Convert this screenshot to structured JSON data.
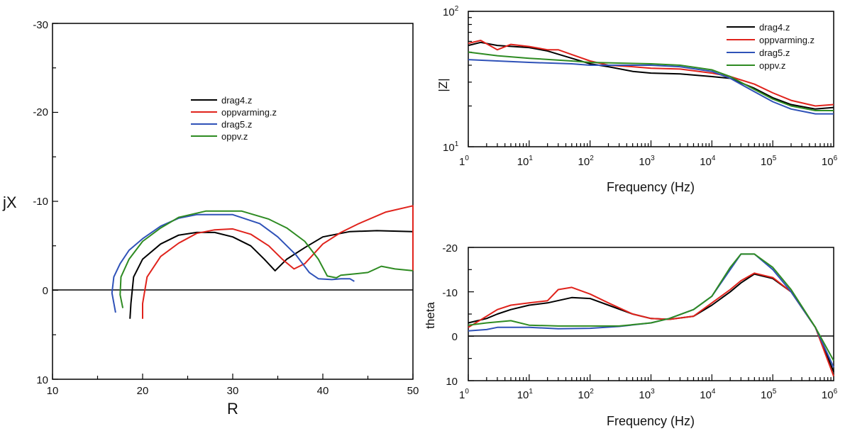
{
  "colors": {
    "drag4": "#000000",
    "oppvarming": "#e0231c",
    "drag5": "#2f52b8",
    "oppv": "#2e8b22"
  },
  "chart_data": [
    {
      "id": "nyquist",
      "type": "line",
      "xlabel": "R",
      "ylabel": "jX",
      "xlim": [
        10,
        50
      ],
      "ylim": [
        -30,
        10
      ],
      "y_inverted": true,
      "xticks": [
        "10",
        "20",
        "30",
        "40",
        "50"
      ],
      "yticks": [
        "-30",
        "-20",
        "-10",
        "0",
        "10"
      ],
      "legend_placement": "center",
      "series": [
        {
          "name": "drag4.z",
          "color_key": "drag4",
          "points": [
            [
              18.6,
              3.2
            ],
            [
              18.7,
              1.5
            ],
            [
              19.0,
              -1.5
            ],
            [
              20.0,
              -3.5
            ],
            [
              22.0,
              -5.2
            ],
            [
              24.0,
              -6.2
            ],
            [
              26.0,
              -6.5
            ],
            [
              28.0,
              -6.5
            ],
            [
              30.0,
              -6.0
            ],
            [
              32.0,
              -5.0
            ],
            [
              33.5,
              -3.5
            ],
            [
              34.7,
              -2.2
            ],
            [
              36.0,
              -3.5
            ],
            [
              38.0,
              -4.8
            ],
            [
              40.0,
              -6.0
            ],
            [
              43.0,
              -6.6
            ],
            [
              46.0,
              -6.7
            ],
            [
              50.0,
              -6.6
            ]
          ]
        },
        {
          "name": "oppvarming.z",
          "color_key": "oppvarming",
          "points": [
            [
              20.0,
              3.2
            ],
            [
              20.0,
              1.5
            ],
            [
              20.5,
              -1.5
            ],
            [
              22.0,
              -3.8
            ],
            [
              24.0,
              -5.3
            ],
            [
              26.0,
              -6.4
            ],
            [
              28.0,
              -6.8
            ],
            [
              30.0,
              -6.9
            ],
            [
              32.0,
              -6.3
            ],
            [
              34.0,
              -5.0
            ],
            [
              35.5,
              -3.5
            ],
            [
              36.8,
              -2.4
            ],
            [
              38.0,
              -3.0
            ],
            [
              40.0,
              -5.2
            ],
            [
              42.0,
              -6.5
            ],
            [
              44.0,
              -7.5
            ],
            [
              47.0,
              -8.8
            ],
            [
              50.0,
              -9.5
            ],
            [
              50.0,
              -2.2
            ]
          ]
        },
        {
          "name": "drag5.z",
          "color_key": "drag5",
          "points": [
            [
              17.0,
              2.5
            ],
            [
              16.6,
              0.3
            ],
            [
              16.8,
              -1.5
            ],
            [
              17.5,
              -3.0
            ],
            [
              18.5,
              -4.5
            ],
            [
              20.0,
              -5.8
            ],
            [
              22.0,
              -7.2
            ],
            [
              24.0,
              -8.1
            ],
            [
              26.0,
              -8.5
            ],
            [
              30.0,
              -8.5
            ],
            [
              33.0,
              -7.5
            ],
            [
              35.0,
              -6.0
            ],
            [
              37.0,
              -4.0
            ],
            [
              38.5,
              -2.0
            ],
            [
              39.5,
              -1.3
            ],
            [
              41.0,
              -1.2
            ],
            [
              42.0,
              -1.3
            ],
            [
              43.0,
              -1.3
            ],
            [
              43.5,
              -1.0
            ]
          ]
        },
        {
          "name": "oppv.z",
          "color_key": "oppv",
          "points": [
            [
              17.8,
              2.0
            ],
            [
              17.5,
              0.5
            ],
            [
              17.6,
              -1.5
            ],
            [
              18.5,
              -3.5
            ],
            [
              20.0,
              -5.5
            ],
            [
              22.0,
              -7.0
            ],
            [
              24.0,
              -8.2
            ],
            [
              27.0,
              -8.9
            ],
            [
              31.0,
              -8.9
            ],
            [
              34.0,
              -8.0
            ],
            [
              36.0,
              -7.0
            ],
            [
              38.0,
              -5.5
            ],
            [
              39.5,
              -3.5
            ],
            [
              40.5,
              -1.6
            ],
            [
              41.5,
              -1.4
            ],
            [
              42.0,
              -1.7
            ],
            [
              44.0,
              -1.9
            ],
            [
              45.0,
              -2.0
            ],
            [
              46.5,
              -2.7
            ],
            [
              48.0,
              -2.4
            ],
            [
              50.0,
              -2.2
            ]
          ]
        }
      ]
    },
    {
      "id": "bode-magnitude",
      "type": "line",
      "xlabel": "Frequency (Hz)",
      "ylabel": "|Z|",
      "xscale": "log",
      "yscale": "log",
      "xlim": [
        1,
        1000000
      ],
      "ylim": [
        10,
        100
      ],
      "xticks": [
        "1",
        "10",
        "100",
        "1000",
        "10000",
        "100000",
        "1000000"
      ],
      "yticks": [
        "10",
        "100"
      ],
      "legend_placement": "top-right",
      "series": [
        {
          "name": "drag4.z",
          "color_key": "drag4",
          "points": [
            [
              1,
              56
            ],
            [
              1.6,
              59
            ],
            [
              3,
              56
            ],
            [
              10,
              54
            ],
            [
              20,
              51
            ],
            [
              50,
              45
            ],
            [
              100,
              41
            ],
            [
              200,
              39
            ],
            [
              500,
              36
            ],
            [
              1000,
              35
            ],
            [
              3000,
              34.5
            ],
            [
              10000,
              33
            ],
            [
              20000,
              32
            ],
            [
              50000,
              27
            ],
            [
              100000,
              23
            ],
            [
              200000,
              20.5
            ],
            [
              500000,
              19
            ],
            [
              1000000,
              19.5
            ]
          ]
        },
        {
          "name": "oppvarming.z",
          "color_key": "oppvarming",
          "points": [
            [
              1,
              58
            ],
            [
              1.6,
              61
            ],
            [
              3,
              52
            ],
            [
              5,
              57
            ],
            [
              10,
              55
            ],
            [
              20,
              52
            ],
            [
              30,
              52
            ],
            [
              50,
              48
            ],
            [
              100,
              43
            ],
            [
              200,
              40
            ],
            [
              500,
              39
            ],
            [
              1000,
              38
            ],
            [
              3000,
              37.5
            ],
            [
              10000,
              35
            ],
            [
              20000,
              33
            ],
            [
              50000,
              29
            ],
            [
              100000,
              25
            ],
            [
              200000,
              22
            ],
            [
              500000,
              20
            ],
            [
              1000000,
              20.5
            ]
          ]
        },
        {
          "name": "drag5.z",
          "color_key": "drag5",
          "points": [
            [
              1,
              44
            ],
            [
              3,
              43
            ],
            [
              10,
              42
            ],
            [
              50,
              41
            ],
            [
              100,
              40
            ],
            [
              300,
              40
            ],
            [
              1000,
              40
            ],
            [
              3000,
              39
            ],
            [
              10000,
              36
            ],
            [
              20000,
              32
            ],
            [
              50000,
              25.5
            ],
            [
              100000,
              21.5
            ],
            [
              200000,
              19
            ],
            [
              500000,
              17.5
            ],
            [
              1000000,
              17.5
            ]
          ]
        },
        {
          "name": "oppv.z",
          "color_key": "oppv",
          "points": [
            [
              1,
              50
            ],
            [
              3,
              47
            ],
            [
              10,
              45
            ],
            [
              50,
              43
            ],
            [
              100,
              42
            ],
            [
              300,
              41.5
            ],
            [
              1000,
              41
            ],
            [
              3000,
              40
            ],
            [
              10000,
              37
            ],
            [
              20000,
              33
            ],
            [
              50000,
              26.5
            ],
            [
              100000,
              22.5
            ],
            [
              200000,
              20
            ],
            [
              500000,
              18.5
            ],
            [
              1000000,
              18.5
            ]
          ]
        }
      ]
    },
    {
      "id": "bode-phase",
      "type": "line",
      "xlabel": "Frequency (Hz)",
      "ylabel": "theta",
      "xscale": "log",
      "xlim": [
        1,
        1000000
      ],
      "ylim": [
        -20,
        10
      ],
      "y_inverted": true,
      "xticks": [
        "1",
        "10",
        "100",
        "1000",
        "10000",
        "100000",
        "1000000"
      ],
      "yticks": [
        "-20",
        "-10",
        "0",
        "10"
      ],
      "series": [
        {
          "name": "drag4.z",
          "color_key": "drag4",
          "points": [
            [
              1,
              -3
            ],
            [
              2,
              -4
            ],
            [
              3,
              -5
            ],
            [
              5,
              -6
            ],
            [
              10,
              -7
            ],
            [
              20,
              -7.5
            ],
            [
              50,
              -8.7
            ],
            [
              100,
              -8.5
            ],
            [
              200,
              -7
            ],
            [
              500,
              -5
            ],
            [
              1000,
              -4
            ],
            [
              2000,
              -3.8
            ],
            [
              5000,
              -4.5
            ],
            [
              10000,
              -7
            ],
            [
              20000,
              -10
            ],
            [
              30000,
              -12
            ],
            [
              50000,
              -14
            ],
            [
              100000,
              -13
            ],
            [
              200000,
              -10
            ],
            [
              500000,
              -2
            ],
            [
              1000000,
              8
            ]
          ]
        },
        {
          "name": "oppvarming.z",
          "color_key": "oppvarming",
          "points": [
            [
              1,
              -2
            ],
            [
              2,
              -4.5
            ],
            [
              3,
              -6
            ],
            [
              5,
              -7
            ],
            [
              10,
              -7.5
            ],
            [
              20,
              -8
            ],
            [
              30,
              -10.5
            ],
            [
              50,
              -11
            ],
            [
              100,
              -9.5
            ],
            [
              200,
              -7.5
            ],
            [
              500,
              -5
            ],
            [
              1000,
              -4
            ],
            [
              2000,
              -3.8
            ],
            [
              5000,
              -4.5
            ],
            [
              10000,
              -7.5
            ],
            [
              20000,
              -10.5
            ],
            [
              30000,
              -12.5
            ],
            [
              50000,
              -14.2
            ],
            [
              100000,
              -13.2
            ],
            [
              200000,
              -10
            ],
            [
              500000,
              -2
            ],
            [
              1000000,
              9
            ]
          ]
        },
        {
          "name": "drag5.z",
          "color_key": "drag5",
          "points": [
            [
              1,
              -1.2
            ],
            [
              2,
              -1.5
            ],
            [
              3,
              -2
            ],
            [
              10,
              -2
            ],
            [
              30,
              -1.7
            ],
            [
              100,
              -1.8
            ],
            [
              300,
              -2.2
            ],
            [
              1000,
              -3
            ],
            [
              2000,
              -4
            ],
            [
              5000,
              -6
            ],
            [
              10000,
              -9
            ],
            [
              20000,
              -15
            ],
            [
              30000,
              -18.5
            ],
            [
              50000,
              -18.5
            ],
            [
              100000,
              -15
            ],
            [
              200000,
              -10
            ],
            [
              500000,
              -2
            ],
            [
              1000000,
              7
            ]
          ]
        },
        {
          "name": "oppv.z",
          "color_key": "oppv",
          "points": [
            [
              1,
              -2.5
            ],
            [
              2,
              -3
            ],
            [
              5,
              -3.5
            ],
            [
              10,
              -2.5
            ],
            [
              30,
              -2.3
            ],
            [
              100,
              -2.3
            ],
            [
              300,
              -2.3
            ],
            [
              1000,
              -3
            ],
            [
              2000,
              -4
            ],
            [
              5000,
              -6
            ],
            [
              10000,
              -9
            ],
            [
              20000,
              -15.5
            ],
            [
              30000,
              -18.5
            ],
            [
              50000,
              -18.5
            ],
            [
              100000,
              -15.5
            ],
            [
              200000,
              -10.5
            ],
            [
              500000,
              -2
            ],
            [
              1000000,
              5.5
            ]
          ]
        }
      ]
    }
  ],
  "tick_labels": {
    "nyquist_x": [
      "10",
      "20",
      "30",
      "40",
      "50"
    ],
    "nyquist_y": [
      "-30",
      "-20",
      "-10",
      "0",
      "10"
    ],
    "mag_y": [
      "10",
      "10"
    ],
    "mag_y_exp": [
      "2",
      "1"
    ],
    "phase_y": [
      "-20",
      "-10",
      "0",
      "10"
    ],
    "freq_base": [
      "1",
      "10",
      "10",
      "10",
      "10",
      "10",
      "10"
    ],
    "freq_exp": [
      "0",
      "1",
      "2",
      "3",
      "4",
      "5",
      "6"
    ]
  },
  "legend_nyquist": [
    "drag4.z",
    "oppvarming.z",
    "drag5.z",
    "oppv.z"
  ],
  "legend_mag": [
    "drag4.z",
    "oppvarming.z",
    "drag5.z",
    "oppv.z"
  ],
  "labels": {
    "nyquist_x": "R",
    "nyquist_y": "jX",
    "mag_x": "Frequency (Hz)",
    "mag_y": "|Z|",
    "phase_x": "Frequency (Hz)",
    "phase_y": "theta"
  }
}
